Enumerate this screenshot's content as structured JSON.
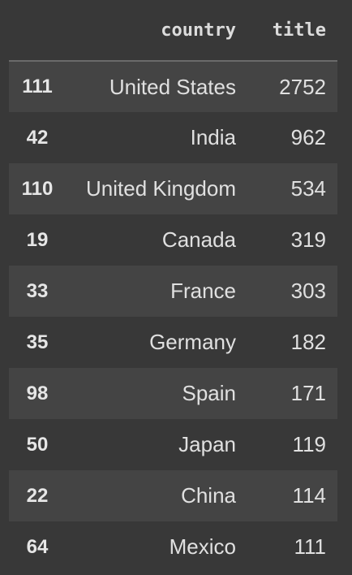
{
  "table": {
    "columns": [
      "country",
      "title"
    ],
    "rows": [
      {
        "index": "111",
        "country": "United States",
        "title": "2752"
      },
      {
        "index": "42",
        "country": "India",
        "title": "962"
      },
      {
        "index": "110",
        "country": "United Kingdom",
        "title": "534"
      },
      {
        "index": "19",
        "country": "Canada",
        "title": "319"
      },
      {
        "index": "33",
        "country": "France",
        "title": "303"
      },
      {
        "index": "35",
        "country": "Germany",
        "title": "182"
      },
      {
        "index": "98",
        "country": "Spain",
        "title": "171"
      },
      {
        "index": "50",
        "country": "Japan",
        "title": "119"
      },
      {
        "index": "22",
        "country": "China",
        "title": "114"
      },
      {
        "index": "64",
        "country": "Mexico",
        "title": "111"
      }
    ]
  },
  "colors": {
    "background": "#383838",
    "stripe": "#444444",
    "text": "#e0e0e0",
    "header_rule": "#6a6a6a"
  }
}
